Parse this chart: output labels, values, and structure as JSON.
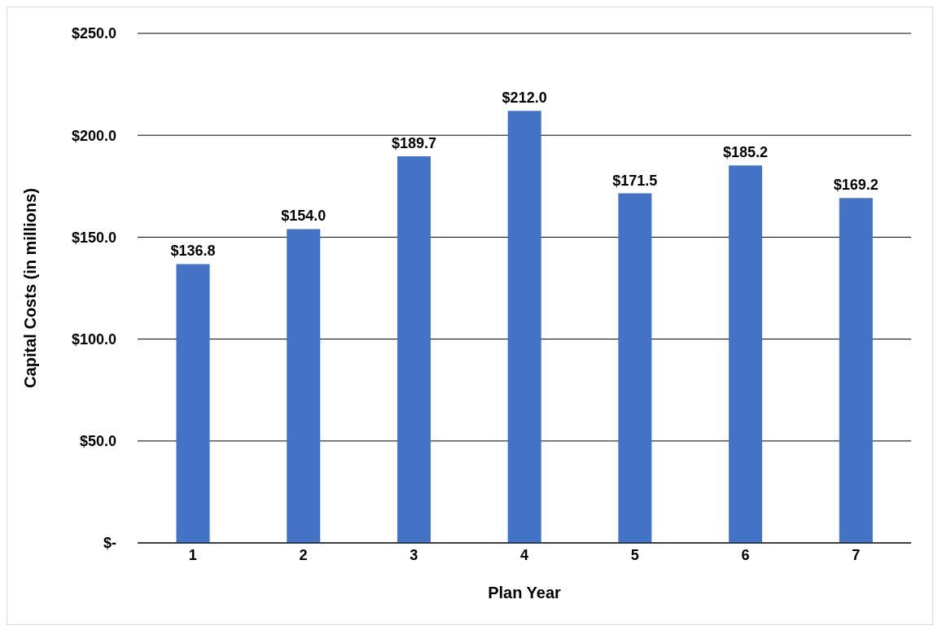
{
  "chart_data": {
    "type": "bar",
    "xlabel": "Plan Year",
    "ylabel": "Capital Costs (in millions)",
    "categories": [
      "1",
      "2",
      "3",
      "4",
      "5",
      "6",
      "7"
    ],
    "values": [
      136.8,
      154.0,
      189.7,
      212.0,
      171.5,
      185.2,
      169.2
    ],
    "value_labels": [
      "$136.8",
      "$154.0",
      "$189.7",
      "$212.0",
      "$171.5",
      "$185.2",
      "$169.2"
    ],
    "color": "#4472c4",
    "ylim": [
      0,
      250
    ],
    "yticks": [
      {
        "value": 0,
        "label": "$-"
      },
      {
        "value": 50,
        "label": "$50.0"
      },
      {
        "value": 100,
        "label": "$100.0"
      },
      {
        "value": 150,
        "label": "$150.0"
      },
      {
        "value": 200,
        "label": "$200.0"
      },
      {
        "value": 250,
        "label": "$250.0"
      }
    ],
    "grid": "y",
    "legend": false
  }
}
